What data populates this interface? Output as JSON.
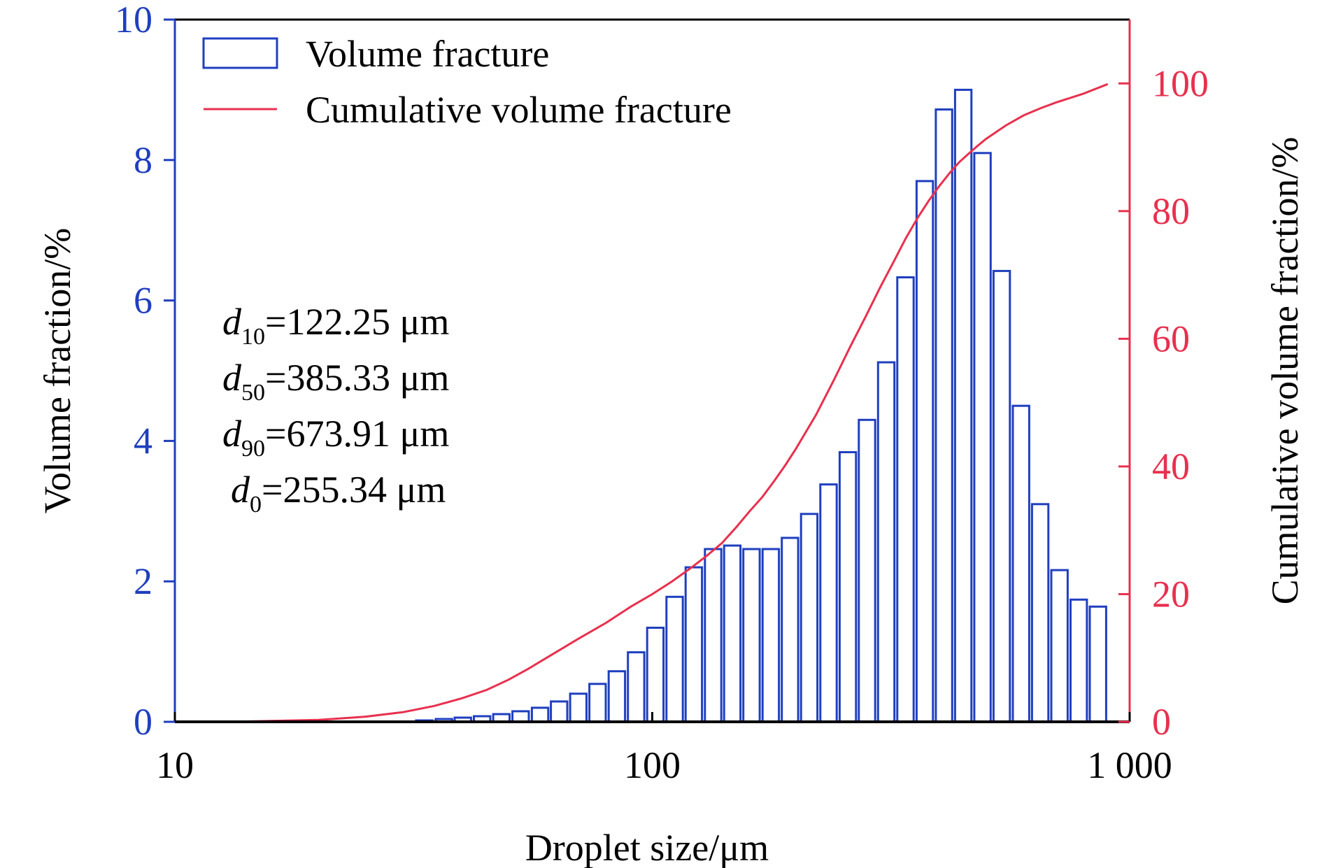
{
  "chart_data": {
    "type": "bar",
    "x_scale": "log",
    "xlim": [
      10,
      1000
    ],
    "xlabel": "Droplet size/μm",
    "x_ticks": [
      {
        "value": 10,
        "label": "10"
      },
      {
        "value": 100,
        "label": "100"
      },
      {
        "value": 1000,
        "label": "1 000"
      }
    ],
    "ylabel_left": "Volume fraction/%",
    "ylim_left": [
      0,
      10
    ],
    "y_ticks_left": [
      "0",
      "2",
      "4",
      "6",
      "8",
      "10"
    ],
    "ylabel_right": "Cumulative volume fraction/%",
    "ylim_right": [
      0,
      110
    ],
    "y_ticks_right": [
      "0",
      "20",
      "40",
      "60",
      "80",
      "100"
    ],
    "grid": false,
    "legend_position": "top-left",
    "colors": {
      "bars": "#1f3fbf",
      "cumulative": "#e8304e",
      "left_axis": "#1f3fbf",
      "right_axis": "#e8304e"
    },
    "series": [
      {
        "name": "Volume fracture",
        "type": "bar",
        "axis": "left",
        "x": [
          13.2,
          14.5,
          15.9,
          17.4,
          19.1,
          21.0,
          23.0,
          25.2,
          27.7,
          30.4,
          33.3,
          36.6,
          40.1,
          44.0,
          48.3,
          53.0,
          58.2,
          63.8,
          70.0,
          76.8,
          84.3,
          92.5,
          101.5,
          111.4,
          122.2,
          134.1,
          147.1,
          161.4,
          177.1,
          194.3,
          213.2,
          234.0,
          256.8,
          281.7,
          309.1,
          339.2,
          372.2,
          408.4,
          448.1,
          491.7,
          539.6,
          592.1,
          649.6,
          712.8,
          782.2,
          858.3
        ],
        "values": [
          0,
          0,
          0,
          0,
          0,
          0,
          0,
          0,
          0,
          0,
          0.02,
          0.04,
          0.06,
          0.08,
          0.11,
          0.15,
          0.2,
          0.29,
          0.4,
          0.54,
          0.72,
          0.99,
          1.34,
          1.78,
          2.2,
          2.46,
          2.51,
          2.46,
          2.46,
          2.62,
          2.96,
          3.38,
          3.84,
          4.3,
          5.12,
          6.33,
          7.7,
          8.72,
          9.0,
          8.1,
          6.42,
          4.5,
          3.1,
          2.16,
          1.74,
          1.64
        ]
      },
      {
        "name": "Cumulative volume fracture",
        "type": "line",
        "axis": "right",
        "x": [
          13,
          20,
          25,
          30,
          35,
          40,
          45,
          50,
          55,
          60,
          70,
          80,
          90,
          100,
          110,
          120,
          130,
          140,
          150,
          160,
          170,
          180,
          190,
          200,
          220,
          240,
          260,
          280,
          300,
          320,
          340,
          360,
          380,
          400,
          420,
          440,
          460,
          480,
          500,
          550,
          600,
          650,
          700,
          800,
          900
        ],
        "values": [
          0,
          0.3,
          0.8,
          1.5,
          2.5,
          3.7,
          5.0,
          6.6,
          8.3,
          10.0,
          13.0,
          15.5,
          18.0,
          20.0,
          22.0,
          24.0,
          26.0,
          28.0,
          30.5,
          33.0,
          35.2,
          37.7,
          40.2,
          42.8,
          48.0,
          53.5,
          58.8,
          63.5,
          68.0,
          72.0,
          75.8,
          79.0,
          81.7,
          84.0,
          86.0,
          87.7,
          89.0,
          90.2,
          91.3,
          93.4,
          95.0,
          96.1,
          97.0,
          98.4,
          99.9
        ]
      }
    ],
    "annotations": [
      {
        "symbol": "d",
        "subscript": "10",
        "text": "=122.25 μm"
      },
      {
        "symbol": "d",
        "subscript": "50",
        "text": "=385.33 μm"
      },
      {
        "symbol": "d",
        "subscript": "90",
        "text": "=673.91 μm"
      },
      {
        "symbol": "d",
        "subscript": "0",
        "text": "=255.34 μm"
      }
    ]
  }
}
